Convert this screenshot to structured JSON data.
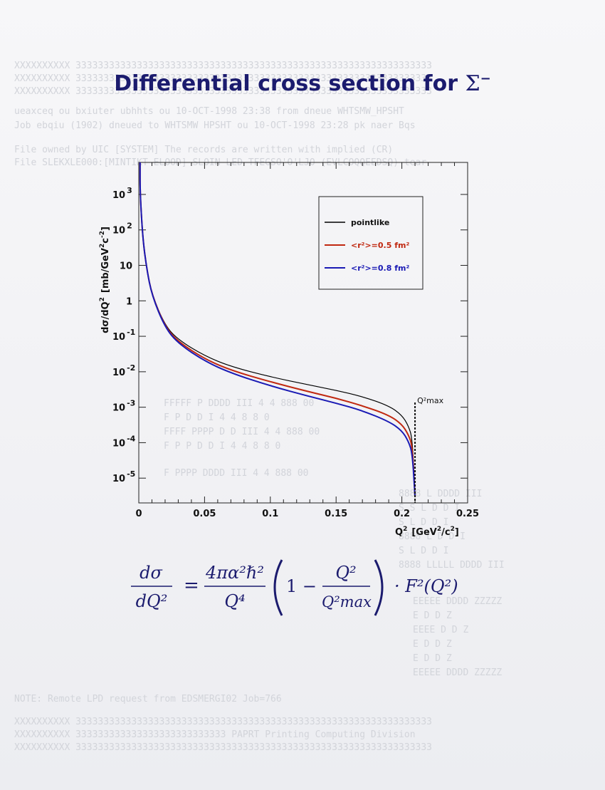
{
  "page": {
    "title_text": "Differential cross section for",
    "title_symbol": "Σ",
    "title_charge": "−"
  },
  "chart_data": {
    "type": "line",
    "title": "Differential cross section for Σ−",
    "xlabel": "Q² [GeV²/c²]",
    "ylabel": "dσ/dQ² [mb/GeV²c⁻²]",
    "x_scale": "linear",
    "y_scale": "log",
    "xlim": [
      0,
      0.25
    ],
    "ylim": [
      2e-06,
      8000
    ],
    "x_ticks": [
      0,
      0.05,
      0.1,
      0.15,
      0.2,
      0.25
    ],
    "x_tick_labels": [
      "0",
      "0.05",
      "0.1",
      "0.15",
      "0.2",
      "0.25"
    ],
    "y_ticks": [
      1000,
      100,
      10,
      1,
      0.1,
      0.01,
      0.001,
      0.0001,
      1e-05
    ],
    "y_tick_labels": [
      "10 3",
      "10 2",
      "10",
      "1",
      "10 -1",
      "10 -2",
      "10 -3",
      "10 -4",
      "10 -5"
    ],
    "grid": false,
    "legend_position": "top-right",
    "qmax": 0.21,
    "qmax_label": "Q²max",
    "series": [
      {
        "name": "pointlike",
        "color": "#000000",
        "x": [
          0.001,
          0.003,
          0.006,
          0.01,
          0.02,
          0.03,
          0.05,
          0.07,
          0.1,
          0.13,
          0.15,
          0.17,
          0.19,
          0.2,
          0.205,
          0.208,
          0.21
        ],
        "y": [
          1100,
          60,
          8,
          1.5,
          0.2,
          0.08,
          0.028,
          0.014,
          0.0072,
          0.0042,
          0.003,
          0.002,
          0.0011,
          0.0006,
          0.0003,
          0.00013,
          3e-06
        ]
      },
      {
        "name": "<r²>=0.5 fm²",
        "color": "#c02810",
        "x": [
          0.001,
          0.003,
          0.006,
          0.01,
          0.02,
          0.03,
          0.05,
          0.07,
          0.1,
          0.13,
          0.15,
          0.17,
          0.19,
          0.2,
          0.205,
          0.208,
          0.21
        ],
        "y": [
          1100,
          60,
          8,
          1.45,
          0.185,
          0.07,
          0.023,
          0.011,
          0.0052,
          0.0027,
          0.0018,
          0.0011,
          0.0006,
          0.00033,
          0.00017,
          8e-05,
          3e-06
        ]
      },
      {
        "name": "<r²>=0.8 fm²",
        "color": "#1a1ab4",
        "x": [
          0.001,
          0.003,
          0.006,
          0.01,
          0.02,
          0.03,
          0.05,
          0.07,
          0.1,
          0.13,
          0.15,
          0.17,
          0.19,
          0.2,
          0.205,
          0.208,
          0.21
        ],
        "y": [
          1100,
          60,
          8,
          1.4,
          0.175,
          0.063,
          0.02,
          0.0092,
          0.004,
          0.002,
          0.0013,
          0.0008,
          0.0004,
          0.00022,
          0.00011,
          5e-05,
          3e-06
        ]
      }
    ]
  },
  "formula": {
    "lhs_num": "dσ",
    "lhs_den": "dQ²",
    "coef_num": "4πα²ℏ²",
    "coef_den": "Q⁴",
    "one": "1 −",
    "frac_num": "Q²",
    "frac_den": "Q²max",
    "tail": "· F²(Q²)"
  }
}
